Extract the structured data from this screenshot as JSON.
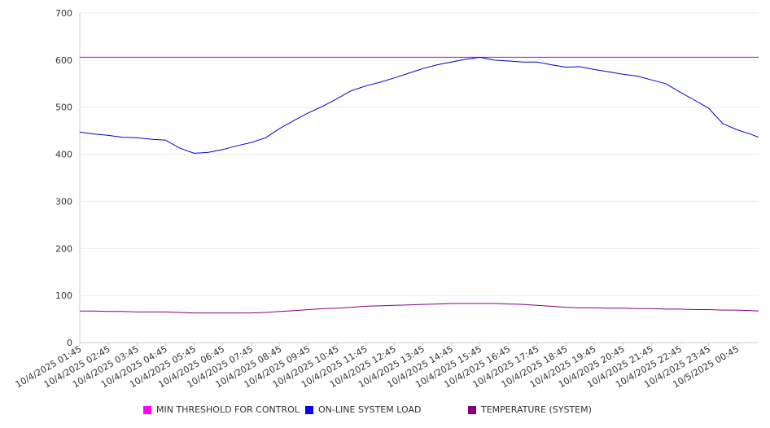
{
  "chart_data": {
    "type": "line",
    "title": "",
    "xlabel": "",
    "ylabel": "",
    "ylim": [
      0,
      700
    ],
    "yticks": [
      0,
      100,
      200,
      300,
      400,
      500,
      600,
      700
    ],
    "grid": true,
    "legend_position": "bottom",
    "x_tick_labels": [
      "10/4/2025 01:45",
      "10/4/2025 02:45",
      "10/4/2025 03:45",
      "10/4/2025 04:45",
      "10/4/2025 05:45",
      "10/4/2025 06:45",
      "10/4/2025 07:45",
      "10/4/2025 08:45",
      "10/4/2025 09:45",
      "10/4/2025 10:45",
      "10/4/2025 11:45",
      "10/4/2025 12:45",
      "10/4/2025 13:45",
      "10/4/2025 14:45",
      "10/4/2025 15:45",
      "10/4/2025 16:45",
      "10/4/2025 17:45",
      "10/4/2025 18:45",
      "10/4/2025 19:45",
      "10/4/2025 20:45",
      "10/4/2025 21:45",
      "10/4/2025 22:45",
      "10/4/2025 23:45",
      "10/5/2025 00:45"
    ],
    "x": [
      "10/4/2025 01:45",
      "10/4/2025 02:15",
      "10/4/2025 02:45",
      "10/4/2025 03:15",
      "10/4/2025 03:45",
      "10/4/2025 04:15",
      "10/4/2025 04:45",
      "10/4/2025 05:15",
      "10/4/2025 05:45",
      "10/4/2025 06:15",
      "10/4/2025 06:45",
      "10/4/2025 07:15",
      "10/4/2025 07:45",
      "10/4/2025 08:15",
      "10/4/2025 08:45",
      "10/4/2025 09:15",
      "10/4/2025 09:45",
      "10/4/2025 10:15",
      "10/4/2025 10:45",
      "10/4/2025 11:15",
      "10/4/2025 11:45",
      "10/4/2025 12:15",
      "10/4/2025 12:45",
      "10/4/2025 13:15",
      "10/4/2025 13:45",
      "10/4/2025 14:15",
      "10/4/2025 14:45",
      "10/4/2025 15:15",
      "10/4/2025 15:45",
      "10/4/2025 16:15",
      "10/4/2025 16:45",
      "10/4/2025 17:15",
      "10/4/2025 17:45",
      "10/4/2025 18:15",
      "10/4/2025 18:45",
      "10/4/2025 19:15",
      "10/4/2025 19:45",
      "10/4/2025 20:15",
      "10/4/2025 20:45",
      "10/4/2025 21:15",
      "10/4/2025 21:45",
      "10/4/2025 22:15",
      "10/4/2025 22:45",
      "10/4/2025 23:15",
      "10/4/2025 23:45",
      "10/5/2025 00:15",
      "10/5/2025 00:45",
      "10/5/2025 01:15",
      "10/5/2025 01:30"
    ],
    "series": [
      {
        "name": "MIN THRESHOLD FOR CONTROL",
        "color": "#cc00cc",
        "values": [
          606,
          606,
          606,
          606,
          606,
          606,
          606,
          606,
          606,
          606,
          606,
          606,
          606,
          606,
          606,
          606,
          606,
          606,
          606,
          606,
          606,
          606,
          606,
          606,
          606,
          606,
          606,
          606,
          606,
          606,
          606,
          606,
          606,
          606,
          606,
          606,
          606,
          606,
          606,
          606,
          606,
          606,
          606,
          606,
          606,
          606,
          606,
          606,
          606
        ]
      },
      {
        "name": "ON-LINE SYSTEM LOAD",
        "color": "#0000cc",
        "values": [
          447,
          443,
          440,
          436,
          435,
          432,
          430,
          413,
          402,
          404,
          410,
          418,
          425,
          435,
          455,
          472,
          488,
          502,
          518,
          535,
          545,
          553,
          562,
          572,
          582,
          590,
          596,
          602,
          606,
          600,
          598,
          596,
          596,
          590,
          585,
          586,
          580,
          575,
          570,
          566,
          558,
          550,
          532,
          515,
          498,
          465,
          452,
          442,
          436
        ]
      },
      {
        "name": "TEMPERATURE (SYSTEM)",
        "color": "#800080",
        "values": [
          67,
          67,
          66,
          66,
          65,
          65,
          65,
          64,
          63,
          63,
          63,
          63,
          63,
          64,
          66,
          68,
          70,
          72,
          73,
          75,
          77,
          78,
          79,
          80,
          81,
          82,
          83,
          83,
          83,
          83,
          82,
          81,
          79,
          77,
          75,
          74,
          74,
          73,
          73,
          72,
          72,
          71,
          71,
          70,
          70,
          69,
          69,
          68,
          67
        ]
      }
    ]
  }
}
